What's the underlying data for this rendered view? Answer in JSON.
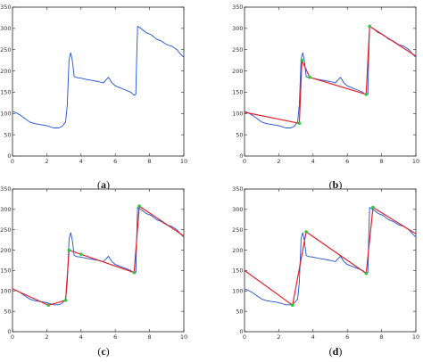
{
  "chart_data": [
    {
      "type": "line",
      "caption": "(a)",
      "xlim": [
        0,
        10
      ],
      "ylim": [
        0,
        350
      ],
      "xticks": [
        "0",
        "2",
        "4",
        "6",
        "8",
        "10"
      ],
      "yticks": [
        "0",
        "50",
        "100",
        "150",
        "200",
        "250",
        "300",
        "350"
      ],
      "grid": false,
      "series": [
        {
          "color": "#1f4fd6",
          "x": [
            0.0,
            0.2,
            0.5,
            0.8,
            1.0,
            1.3,
            1.6,
            1.9,
            2.1,
            2.4,
            2.7,
            2.9,
            3.0,
            3.1,
            3.2,
            3.3,
            3.4,
            3.5,
            3.6,
            3.7,
            3.8,
            4.0,
            4.3,
            4.6,
            5.0,
            5.3,
            5.6,
            5.8,
            6.0,
            6.3,
            6.6,
            6.9,
            7.1,
            7.2,
            7.25,
            7.3,
            7.5,
            7.8,
            8.1,
            8.4,
            8.7,
            9.0,
            9.3,
            9.6,
            9.8,
            10.0
          ],
          "y": [
            105,
            102,
            95,
            86,
            80,
            76,
            74,
            72,
            70,
            66,
            66,
            70,
            75,
            80,
            120,
            228,
            243,
            222,
            187,
            185,
            184,
            183,
            180,
            178,
            175,
            172,
            185,
            172,
            165,
            160,
            155,
            150,
            143,
            145,
            235,
            305,
            300,
            290,
            285,
            275,
            270,
            262,
            258,
            250,
            240,
            232
          ]
        }
      ]
    },
    {
      "type": "line",
      "caption": "(b)",
      "xlim": [
        0,
        10
      ],
      "ylim": [
        0,
        350
      ],
      "xticks": [
        "0",
        "2",
        "4",
        "6",
        "8",
        "10"
      ],
      "yticks": [
        "0",
        "50",
        "100",
        "150",
        "200",
        "250",
        "300",
        "350"
      ],
      "grid": false,
      "series": [
        {
          "color": "#1f4fd6",
          "x": [
            0.0,
            0.2,
            0.5,
            0.8,
            1.0,
            1.3,
            1.6,
            1.9,
            2.1,
            2.4,
            2.7,
            2.9,
            3.0,
            3.1,
            3.2,
            3.3,
            3.4,
            3.5,
            3.6,
            3.7,
            3.8,
            4.0,
            4.3,
            4.6,
            5.0,
            5.3,
            5.6,
            5.8,
            6.0,
            6.3,
            6.6,
            6.9,
            7.1,
            7.2,
            7.25,
            7.3,
            7.5,
            7.8,
            8.1,
            8.4,
            8.7,
            9.0,
            9.3,
            9.6,
            9.8,
            10.0
          ],
          "y": [
            105,
            102,
            95,
            86,
            80,
            76,
            74,
            72,
            70,
            66,
            66,
            70,
            75,
            80,
            120,
            228,
            243,
            222,
            187,
            185,
            184,
            183,
            180,
            178,
            175,
            172,
            185,
            172,
            165,
            160,
            155,
            150,
            143,
            145,
            235,
            305,
            300,
            290,
            285,
            275,
            270,
            262,
            258,
            250,
            240,
            232
          ]
        },
        {
          "color": "#e0202a",
          "x": [
            0.0,
            3.2,
            3.35,
            3.8,
            7.1,
            7.3,
            10.0
          ],
          "y": [
            103,
            77,
            225,
            185,
            145,
            305,
            235
          ]
        }
      ],
      "points": {
        "color": "#22cc33",
        "x": [
          3.2,
          3.35,
          3.8,
          7.1,
          7.3
        ],
        "y": [
          77,
          225,
          185,
          145,
          305
        ]
      }
    },
    {
      "type": "line",
      "caption": "(c)",
      "xlim": [
        0,
        10
      ],
      "ylim": [
        0,
        350
      ],
      "xticks": [
        "0",
        "2",
        "4",
        "6",
        "8",
        "10"
      ],
      "yticks": [
        "0",
        "50",
        "100",
        "150",
        "200",
        "250",
        "300",
        "350"
      ],
      "grid": false,
      "series": [
        {
          "color": "#1f4fd6",
          "x": [
            0.0,
            0.2,
            0.5,
            0.8,
            1.0,
            1.3,
            1.6,
            1.9,
            2.1,
            2.4,
            2.7,
            2.9,
            3.0,
            3.1,
            3.2,
            3.3,
            3.4,
            3.5,
            3.6,
            3.7,
            3.8,
            4.0,
            4.3,
            4.6,
            5.0,
            5.3,
            5.6,
            5.8,
            6.0,
            6.3,
            6.6,
            6.9,
            7.1,
            7.2,
            7.25,
            7.3,
            7.5,
            7.8,
            8.1,
            8.4,
            8.7,
            9.0,
            9.3,
            9.6,
            9.8,
            10.0
          ],
          "y": [
            105,
            102,
            95,
            86,
            80,
            76,
            74,
            72,
            70,
            66,
            66,
            70,
            75,
            80,
            120,
            228,
            243,
            222,
            187,
            185,
            184,
            183,
            180,
            178,
            175,
            172,
            185,
            172,
            165,
            160,
            155,
            150,
            143,
            145,
            235,
            305,
            300,
            290,
            285,
            275,
            270,
            262,
            258,
            250,
            240,
            232
          ]
        },
        {
          "color": "#e0202a",
          "x": [
            0.0,
            2.1,
            3.1,
            3.3,
            7.1,
            7.4,
            10.0
          ],
          "y": [
            105,
            65,
            77,
            200,
            145,
            308,
            235
          ]
        }
      ],
      "points": {
        "color": "#22cc33",
        "x": [
          2.1,
          3.1,
          3.3,
          4.0,
          7.1,
          7.4
        ],
        "y": [
          65,
          77,
          200,
          190,
          145,
          308
        ]
      }
    },
    {
      "type": "line",
      "caption": "(d)",
      "xlim": [
        0,
        10
      ],
      "ylim": [
        0,
        350
      ],
      "xticks": [
        "0",
        "2",
        "4",
        "6",
        "8",
        "10"
      ],
      "yticks": [
        "0",
        "50",
        "100",
        "150",
        "200",
        "250",
        "300",
        "350"
      ],
      "grid": false,
      "series": [
        {
          "color": "#1f4fd6",
          "x": [
            0.0,
            0.2,
            0.5,
            0.8,
            1.0,
            1.3,
            1.6,
            1.9,
            2.1,
            2.4,
            2.7,
            2.9,
            3.0,
            3.1,
            3.2,
            3.3,
            3.4,
            3.5,
            3.6,
            3.7,
            3.8,
            4.0,
            4.3,
            4.6,
            5.0,
            5.3,
            5.6,
            5.8,
            6.0,
            6.3,
            6.6,
            6.9,
            7.1,
            7.2,
            7.25,
            7.3,
            7.5,
            7.8,
            8.1,
            8.4,
            8.7,
            9.0,
            9.3,
            9.6,
            9.8,
            10.0
          ],
          "y": [
            105,
            102,
            95,
            86,
            80,
            76,
            74,
            72,
            70,
            66,
            66,
            70,
            75,
            80,
            120,
            228,
            243,
            222,
            187,
            185,
            184,
            183,
            180,
            178,
            175,
            172,
            185,
            172,
            165,
            160,
            155,
            150,
            143,
            145,
            235,
            305,
            300,
            290,
            285,
            275,
            270,
            262,
            258,
            250,
            240,
            232
          ]
        },
        {
          "color": "#e0202a",
          "x": [
            0.0,
            2.8,
            3.6,
            7.1,
            7.5,
            10.0
          ],
          "y": [
            150,
            65,
            245,
            143,
            305,
            240
          ]
        }
      ],
      "points": {
        "color": "#22cc33",
        "x": [
          2.8,
          3.6,
          7.1,
          7.5
        ],
        "y": [
          65,
          245,
          143,
          305
        ]
      }
    }
  ]
}
